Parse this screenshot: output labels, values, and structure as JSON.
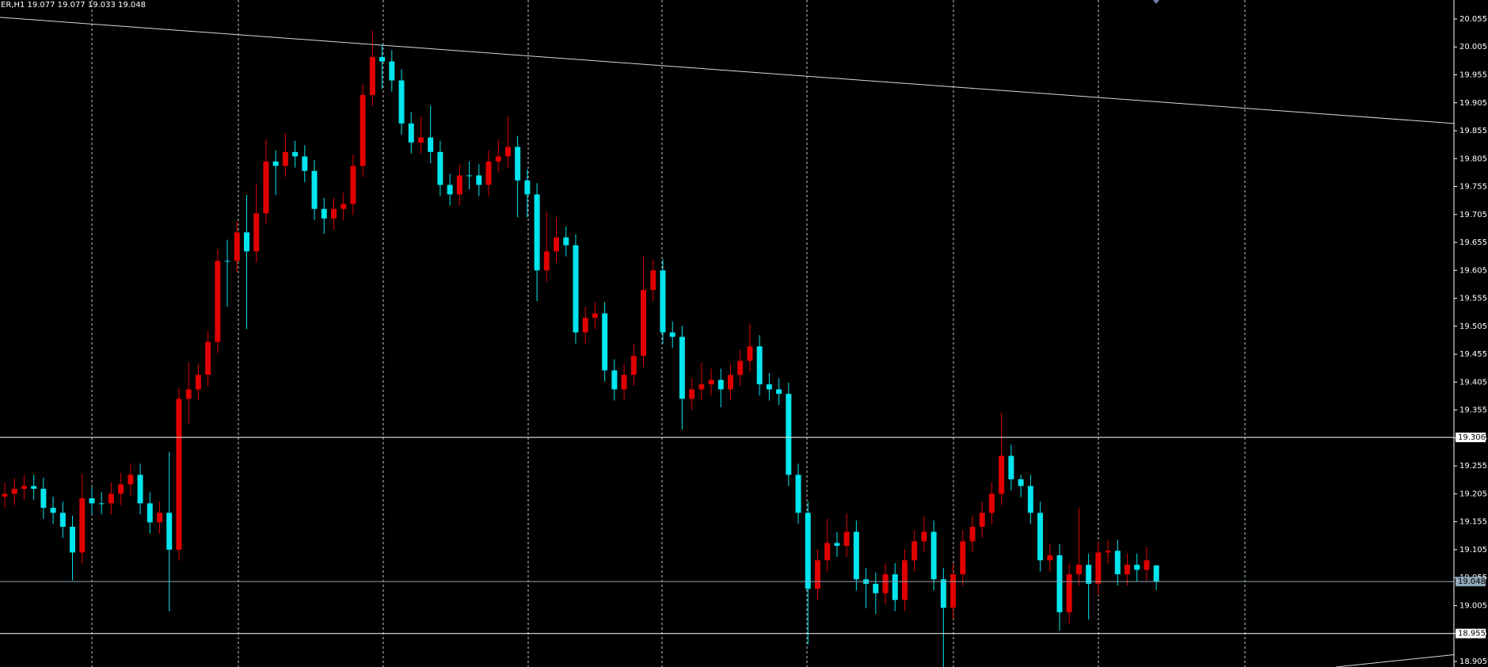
{
  "chart_data": {
    "type": "candlestick",
    "title": "ER,H1  19.077 19.077 19.033 19.048",
    "up_color": "#e00000",
    "down_color": "#00e5ee",
    "grid": true,
    "ylim": [
      18.895,
      20.089
    ],
    "yticks": [
      18.905,
      18.955,
      19.005,
      19.055,
      19.105,
      19.155,
      19.205,
      19.255,
      19.305,
      19.355,
      19.405,
      19.455,
      19.505,
      19.555,
      19.605,
      19.655,
      19.705,
      19.755,
      19.805,
      19.855,
      19.905,
      19.955,
      20.005,
      20.055
    ],
    "price_lines": [
      {
        "value": 19.306,
        "color": "#ffffff"
      },
      {
        "value": 19.048,
        "color": "#8fa8b8"
      },
      {
        "value": 18.955,
        "color": "#ffffff"
      }
    ],
    "trendlines": [
      {
        "start": 20.058,
        "end": 19.868
      },
      {
        "start": 18.895,
        "end": 18.917
      }
    ],
    "open": [
      19.2,
      19.205,
      19.214,
      19.219,
      19.214,
      19.18,
      19.171,
      19.146,
      19.1,
      19.197,
      19.188,
      19.188,
      19.205,
      19.222,
      19.239,
      19.188,
      19.154,
      19.171,
      19.105,
      19.375,
      19.392,
      19.418,
      19.477,
      19.622,
      19.622,
      19.673,
      19.639,
      19.707,
      19.8,
      19.792,
      19.817,
      19.809,
      19.783,
      19.715,
      19.698,
      19.715,
      19.724,
      19.792,
      19.919,
      19.987,
      19.979,
      19.945,
      19.868,
      19.834,
      19.843,
      19.817,
      19.758,
      19.741,
      19.775,
      19.775,
      19.758,
      19.8,
      19.809,
      19.826,
      19.766,
      19.741,
      19.605,
      19.639,
      19.664,
      19.65,
      19.494,
      19.52,
      19.528,
      19.426,
      19.392,
      19.418,
      19.452,
      19.57,
      19.605,
      19.494,
      19.486,
      19.375,
      19.392,
      19.401,
      19.409,
      19.392,
      19.418,
      19.443,
      19.469,
      19.401,
      19.392,
      19.384,
      19.239,
      19.171,
      19.035,
      19.086,
      19.117,
      19.112,
      19.137,
      19.052,
      19.044,
      19.027,
      19.061,
      19.015,
      19.086,
      19.12,
      19.137,
      19.052,
      19.001,
      19.061,
      19.12,
      19.146,
      19.171,
      19.205,
      19.273,
      19.231,
      19.219,
      19.171,
      19.086,
      19.095,
      18.993,
      19.061,
      19.078,
      19.044,
      19.1,
      19.103,
      19.061,
      19.078,
      19.069,
      19.077
    ],
    "high": [
      19.225,
      19.234,
      19.239,
      19.239,
      19.234,
      19.2,
      19.191,
      19.166,
      19.24,
      19.217,
      19.208,
      19.225,
      19.242,
      19.26,
      19.259,
      19.208,
      19.191,
      19.28,
      19.395,
      19.44,
      19.438,
      19.497,
      19.642,
      19.66,
      19.693,
      19.74,
      19.76,
      19.84,
      19.82,
      19.85,
      19.837,
      19.829,
      19.803,
      19.735,
      19.735,
      19.744,
      19.812,
      19.939,
      20.034,
      20.01,
      19.999,
      19.965,
      19.888,
      19.88,
      19.9,
      19.837,
      19.778,
      19.795,
      19.8,
      19.795,
      19.82,
      19.84,
      19.88,
      19.846,
      19.786,
      19.761,
      19.71,
      19.7,
      19.684,
      19.67,
      19.54,
      19.548,
      19.548,
      19.446,
      19.438,
      19.472,
      19.63,
      19.625,
      19.625,
      19.514,
      19.506,
      19.412,
      19.44,
      19.429,
      19.429,
      19.438,
      19.463,
      19.51,
      19.489,
      19.421,
      19.412,
      19.404,
      19.259,
      19.191,
      19.106,
      19.16,
      19.137,
      19.17,
      19.157,
      19.072,
      19.064,
      19.081,
      19.081,
      19.106,
      19.14,
      19.165,
      19.157,
      19.072,
      19.081,
      19.14,
      19.166,
      19.191,
      19.225,
      19.35,
      19.293,
      19.239,
      19.239,
      19.191,
      19.115,
      19.115,
      19.081,
      19.18,
      19.098,
      19.12,
      19.123,
      19.123,
      19.098,
      19.098,
      19.11,
      19.077
    ],
    "low": [
      19.18,
      19.185,
      19.194,
      19.194,
      19.16,
      19.151,
      19.126,
      19.05,
      19.08,
      19.168,
      19.168,
      19.168,
      19.185,
      19.202,
      19.168,
      19.134,
      19.134,
      18.995,
      19.085,
      19.33,
      19.372,
      19.398,
      19.457,
      19.54,
      19.602,
      19.5,
      19.619,
      19.687,
      19.74,
      19.772,
      19.789,
      19.763,
      19.695,
      19.67,
      19.678,
      19.695,
      19.704,
      19.772,
      19.899,
      19.93,
      19.925,
      19.848,
      19.814,
      19.814,
      19.797,
      19.738,
      19.721,
      19.721,
      19.75,
      19.738,
      19.738,
      19.78,
      19.789,
      19.7,
      19.7,
      19.55,
      19.585,
      19.619,
      19.63,
      19.474,
      19.474,
      19.5,
      19.406,
      19.372,
      19.372,
      19.398,
      19.432,
      19.55,
      19.474,
      19.466,
      19.32,
      19.355,
      19.372,
      19.381,
      19.36,
      19.372,
      19.398,
      19.423,
      19.381,
      19.372,
      19.364,
      19.219,
      19.151,
      18.935,
      19.015,
      19.066,
      19.092,
      19.092,
      19.032,
      19.0,
      18.99,
      19.007,
      18.995,
      18.995,
      19.066,
      19.1,
      19.032,
      18.895,
      18.981,
      19.041,
      19.1,
      19.126,
      19.151,
      19.185,
      19.211,
      19.199,
      19.151,
      19.066,
      19.066,
      18.96,
      18.973,
      19.041,
      18.98,
      19.024,
      19.08,
      19.041,
      19.041,
      19.049,
      19.049,
      19.033
    ],
    "close": [
      19.205,
      19.214,
      19.219,
      19.214,
      19.18,
      19.171,
      19.146,
      19.1,
      19.197,
      19.188,
      19.188,
      19.205,
      19.222,
      19.239,
      19.188,
      19.154,
      19.171,
      19.105,
      19.375,
      19.392,
      19.418,
      19.477,
      19.622,
      19.622,
      19.673,
      19.639,
      19.707,
      19.8,
      19.792,
      19.817,
      19.809,
      19.783,
      19.715,
      19.698,
      19.715,
      19.724,
      19.792,
      19.919,
      19.987,
      19.979,
      19.945,
      19.868,
      19.834,
      19.843,
      19.817,
      19.758,
      19.741,
      19.775,
      19.775,
      19.758,
      19.8,
      19.809,
      19.826,
      19.766,
      19.741,
      19.605,
      19.639,
      19.664,
      19.65,
      19.494,
      19.52,
      19.528,
      19.426,
      19.392,
      19.418,
      19.452,
      19.57,
      19.605,
      19.494,
      19.486,
      19.375,
      19.392,
      19.401,
      19.409,
      19.392,
      19.418,
      19.443,
      19.469,
      19.401,
      19.392,
      19.384,
      19.239,
      19.171,
      19.035,
      19.086,
      19.117,
      19.112,
      19.137,
      19.052,
      19.044,
      19.027,
      19.061,
      19.015,
      19.086,
      19.12,
      19.137,
      19.052,
      19.001,
      19.061,
      19.12,
      19.146,
      19.171,
      19.205,
      19.273,
      19.231,
      19.219,
      19.171,
      19.086,
      19.095,
      18.993,
      19.061,
      19.078,
      19.044,
      19.1,
      19.103,
      19.061,
      19.078,
      19.069,
      19.086,
      19.048
    ]
  }
}
